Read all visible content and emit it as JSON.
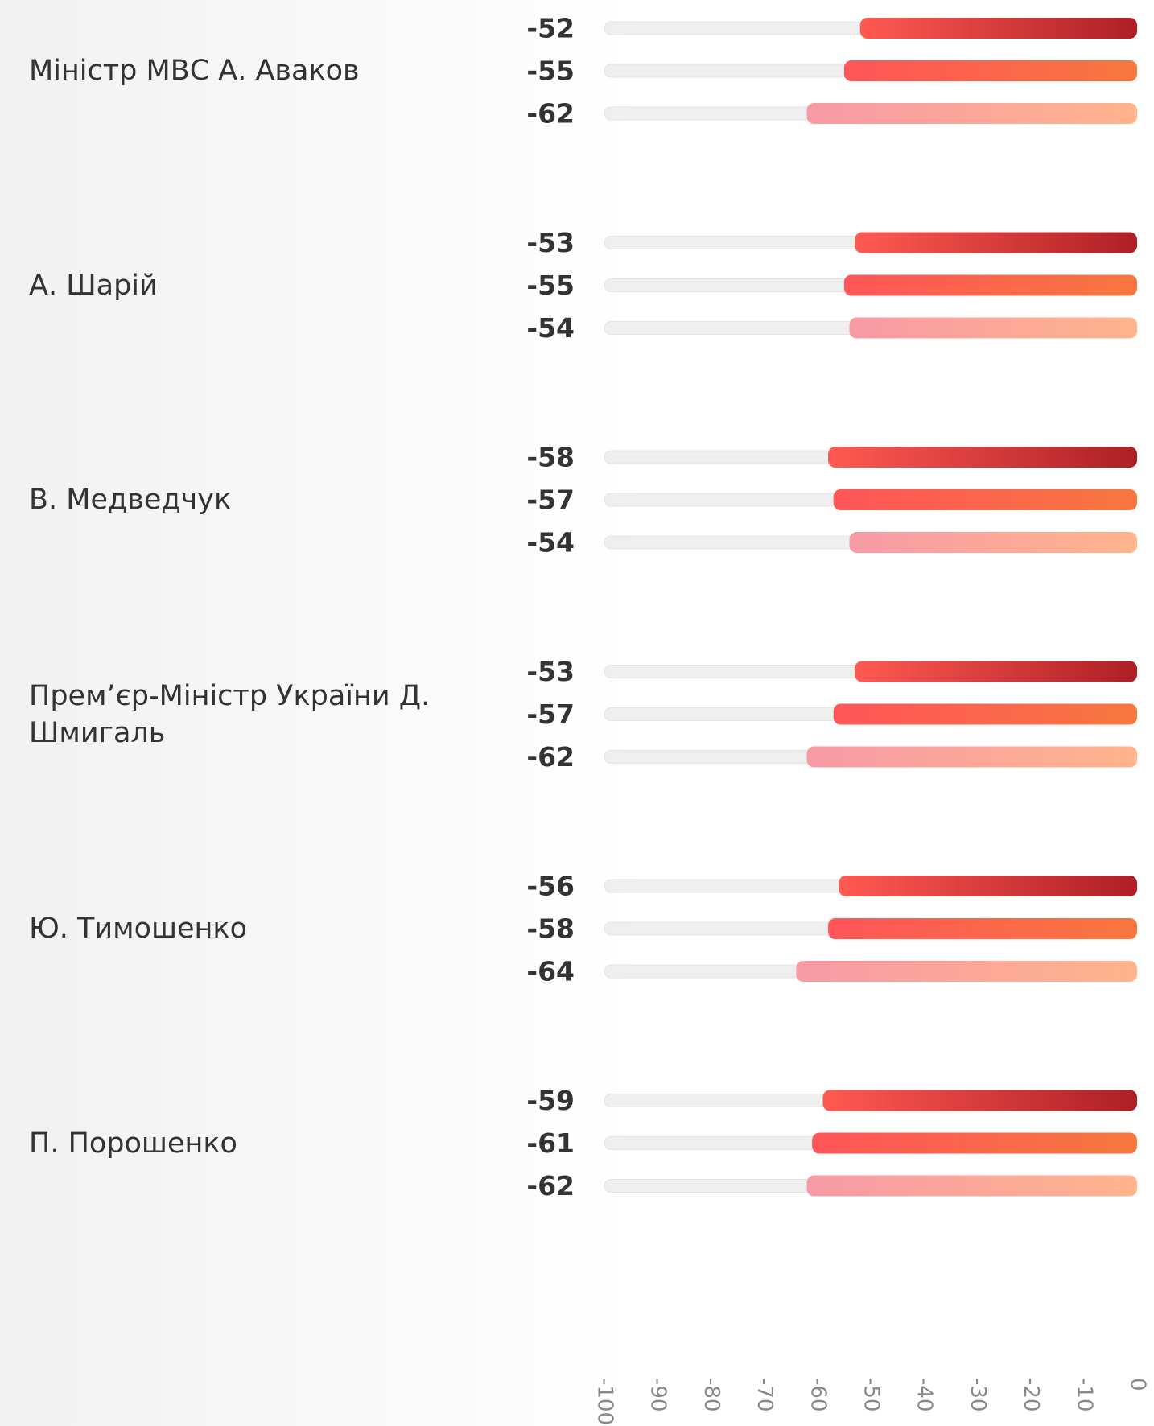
{
  "chart_data": {
    "type": "bar",
    "orientation": "horizontal",
    "categories": [
      "Міністр МВС А. Аваков",
      "А. Шарій",
      "В. Медведчук",
      "Прем’єр-Міністр України Д. Шмигаль",
      "Ю. Тимошенко",
      "П. Порошенко"
    ],
    "series": [
      {
        "color": [
          "#ff5a52",
          "#ad1f25"
        ],
        "values": [
          -52,
          -53,
          -58,
          -53,
          -56,
          -59
        ]
      },
      {
        "color": [
          "#ff5558",
          "#f7773f"
        ],
        "values": [
          -55,
          -55,
          -57,
          -57,
          -58,
          -61
        ]
      },
      {
        "color": [
          "#f79aa6",
          "#ffb48c"
        ],
        "values": [
          -62,
          -54,
          -54,
          -62,
          -64,
          -62
        ]
      }
    ],
    "xlim": [
      -100,
      0
    ],
    "xticks": [
      -100,
      -90,
      -80,
      -70,
      -60,
      -50,
      -40,
      -30,
      -20,
      -10,
      0
    ]
  }
}
